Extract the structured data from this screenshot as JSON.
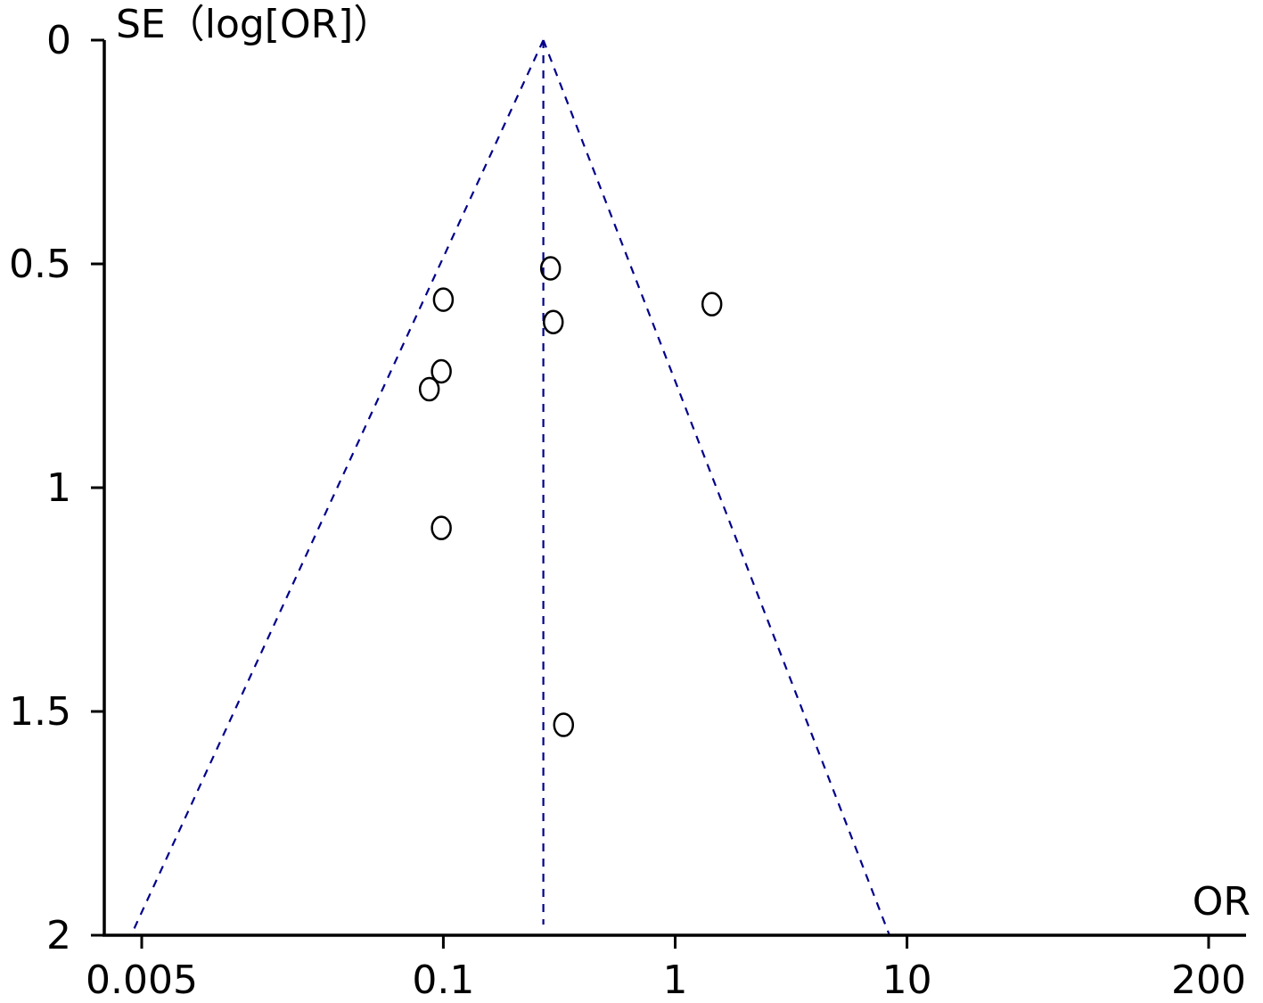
{
  "chart_data": {
    "type": "scatter",
    "subtype": "funnel-plot",
    "title": "",
    "xlabel": "OR",
    "ylabel": "SE（log[OR]）",
    "x_scale": "log",
    "y_reversed": true,
    "xlim": [
      0.0042,
      250
    ],
    "ylim": [
      0,
      2
    ],
    "x_ticks": [
      {
        "value": 0.005,
        "label": "0.005"
      },
      {
        "value": 0.1,
        "label": "0.1"
      },
      {
        "value": 1,
        "label": "1"
      },
      {
        "value": 10,
        "label": "10"
      },
      {
        "value": 200,
        "label": "200"
      }
    ],
    "y_ticks": [
      {
        "value": 0,
        "label": "0"
      },
      {
        "value": 0.5,
        "label": "0.5"
      },
      {
        "value": 1,
        "label": "1"
      },
      {
        "value": 1.5,
        "label": "1.5"
      },
      {
        "value": 2,
        "label": "2"
      }
    ],
    "pooled_or": 0.27,
    "funnel": {
      "apex": {
        "or": 0.27,
        "se": 0
      },
      "left_base": {
        "or": 0.0045,
        "se": 2
      },
      "right_base": {
        "or": 8.4,
        "se": 2
      }
    },
    "points": [
      {
        "or": 0.29,
        "se": 0.51
      },
      {
        "or": 0.1,
        "se": 0.58
      },
      {
        "or": 0.298,
        "se": 0.63
      },
      {
        "or": 1.44,
        "se": 0.59
      },
      {
        "or": 0.098,
        "se": 0.74
      },
      {
        "or": 0.087,
        "se": 0.78
      },
      {
        "or": 0.098,
        "se": 1.09
      },
      {
        "or": 0.33,
        "se": 1.53
      }
    ],
    "grid": false,
    "colors": {
      "funnel": "#00008B",
      "points": "#000000",
      "axes": "#000000"
    }
  }
}
